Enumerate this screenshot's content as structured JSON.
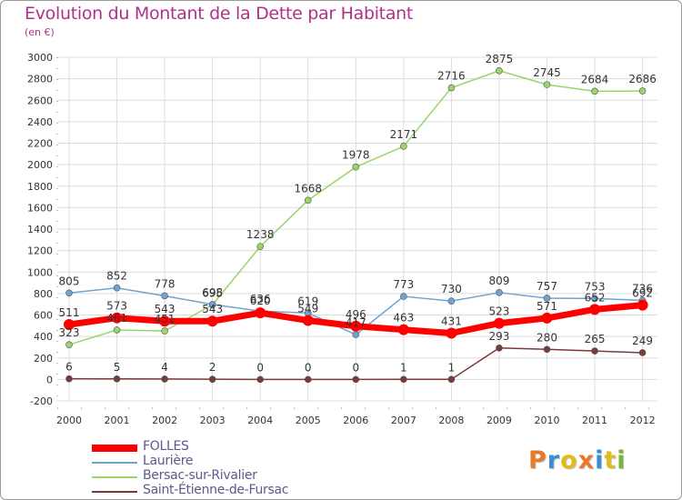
{
  "title": "Evolution du Montant de la Dette par Habitant",
  "subtitle": "(en €)",
  "logo": {
    "text": "Proxiti",
    "letter_colors": [
      "#e87a2a",
      "#3a8ed4",
      "#e0bb1c",
      "#e87a2a",
      "#3a8ed4",
      "#e0bb1c",
      "#7ab33a"
    ]
  },
  "chart_data": {
    "type": "line",
    "x": [
      "2000",
      "2001",
      "2002",
      "2003",
      "2004",
      "2005",
      "2006",
      "2007",
      "2008",
      "2009",
      "2010",
      "2011",
      "2012"
    ],
    "ylim": [
      -200,
      3000
    ],
    "yticks": [
      -200,
      0,
      200,
      400,
      600,
      800,
      1000,
      1200,
      1400,
      1600,
      1800,
      2000,
      2200,
      2400,
      2600,
      2800,
      3000
    ],
    "grid": true,
    "legend_position": "bottom-left",
    "series": [
      {
        "name": "FOLLES",
        "color": "#ff0000",
        "values": [
          511,
          573,
          543,
          543,
          620,
          549,
          496,
          463,
          431,
          523,
          571,
          652,
          692
        ],
        "width": 7
      },
      {
        "name": "Laurière",
        "color": "#6fa3d2",
        "values": [
          805,
          852,
          778,
          698,
          636,
          619,
          417,
          773,
          730,
          809,
          757,
          753,
          736
        ],
        "width": 1.5
      },
      {
        "name": "Bersac-sur-Rivalier",
        "color": "#9ad46a",
        "values": [
          323,
          461,
          451,
          695,
          1238,
          1668,
          1978,
          2171,
          2716,
          2875,
          2745,
          2684,
          2686
        ],
        "width": 1.5
      },
      {
        "name": "Saint-Étienne-de-Fursac",
        "color": "#7a3a3a",
        "values": [
          6,
          5,
          4,
          2,
          0,
          0,
          0,
          1,
          1,
          293,
          280,
          265,
          249
        ],
        "width": 1.5
      }
    ]
  }
}
